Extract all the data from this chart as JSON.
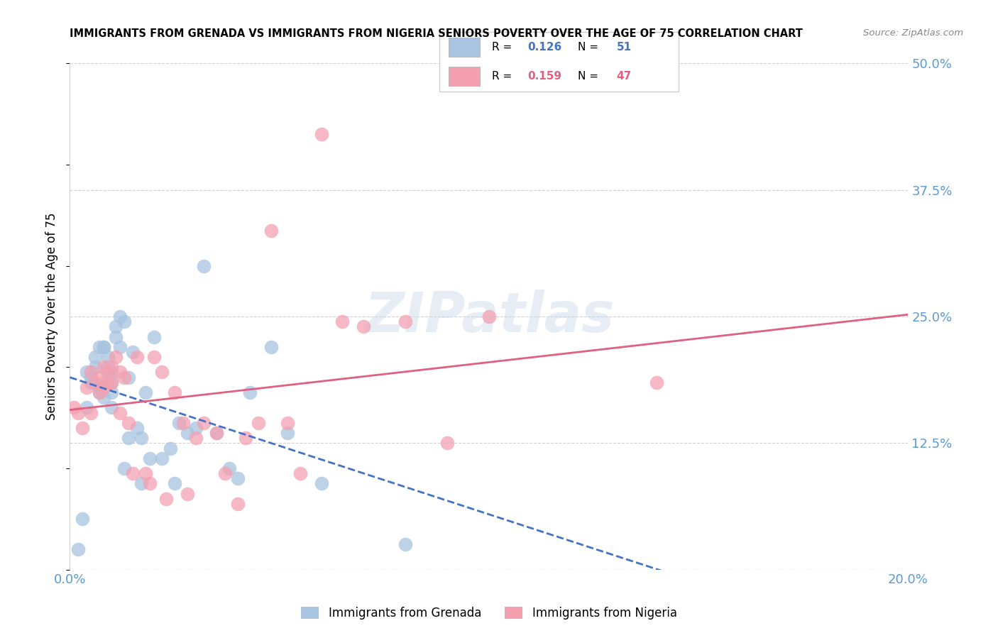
{
  "title": "IMMIGRANTS FROM GRENADA VS IMMIGRANTS FROM NIGERIA SENIORS POVERTY OVER THE AGE OF 75 CORRELATION CHART",
  "source": "Source: ZipAtlas.com",
  "ylabel": "Seniors Poverty Over the Age of 75",
  "xlim": [
    0.0,
    0.2
  ],
  "ylim": [
    0.0,
    0.5
  ],
  "xticks": [
    0.0,
    0.05,
    0.1,
    0.15,
    0.2
  ],
  "xticklabels": [
    "0.0%",
    "",
    "",
    "",
    "20.0%"
  ],
  "yticks": [
    0.0,
    0.125,
    0.25,
    0.375,
    0.5
  ],
  "yticklabels_right": [
    "",
    "12.5%",
    "25.0%",
    "37.5%",
    "50.0%"
  ],
  "axis_color": "#5b9bd5",
  "grid_color": "#d0d0d0",
  "grenada_color": "#a8c4e0",
  "nigeria_color": "#f4a0b0",
  "grenada_trend_color": "#4472c4",
  "nigeria_trend_color": "#e06080",
  "grenada_r": "0.126",
  "grenada_n": "51",
  "nigeria_r": "0.159",
  "nigeria_n": "47",
  "legend_label1": "Immigrants from Grenada",
  "legend_label2": "Immigrants from Nigeria",
  "grenada_x": [
    0.002,
    0.003,
    0.004,
    0.004,
    0.005,
    0.005,
    0.006,
    0.006,
    0.007,
    0.007,
    0.007,
    0.008,
    0.008,
    0.008,
    0.009,
    0.009,
    0.009,
    0.01,
    0.01,
    0.01,
    0.01,
    0.011,
    0.011,
    0.012,
    0.012,
    0.013,
    0.013,
    0.014,
    0.014,
    0.015,
    0.016,
    0.017,
    0.017,
    0.018,
    0.019,
    0.02,
    0.022,
    0.024,
    0.025,
    0.026,
    0.028,
    0.03,
    0.032,
    0.035,
    0.038,
    0.04,
    0.043,
    0.048,
    0.052,
    0.06,
    0.08
  ],
  "grenada_y": [
    0.02,
    0.05,
    0.16,
    0.195,
    0.19,
    0.185,
    0.21,
    0.2,
    0.18,
    0.175,
    0.22,
    0.17,
    0.22,
    0.22,
    0.2,
    0.21,
    0.19,
    0.175,
    0.195,
    0.185,
    0.16,
    0.23,
    0.24,
    0.22,
    0.25,
    0.245,
    0.1,
    0.13,
    0.19,
    0.215,
    0.14,
    0.085,
    0.13,
    0.175,
    0.11,
    0.23,
    0.11,
    0.12,
    0.085,
    0.145,
    0.135,
    0.14,
    0.3,
    0.135,
    0.1,
    0.09,
    0.175,
    0.22,
    0.135,
    0.085,
    0.025
  ],
  "nigeria_x": [
    0.001,
    0.002,
    0.003,
    0.004,
    0.005,
    0.005,
    0.006,
    0.007,
    0.007,
    0.008,
    0.008,
    0.009,
    0.009,
    0.01,
    0.01,
    0.011,
    0.012,
    0.012,
    0.013,
    0.014,
    0.015,
    0.016,
    0.018,
    0.019,
    0.02,
    0.022,
    0.023,
    0.025,
    0.027,
    0.028,
    0.03,
    0.032,
    0.035,
    0.037,
    0.04,
    0.042,
    0.045,
    0.048,
    0.052,
    0.055,
    0.06,
    0.065,
    0.07,
    0.08,
    0.09,
    0.1,
    0.14
  ],
  "nigeria_y": [
    0.16,
    0.155,
    0.14,
    0.18,
    0.155,
    0.195,
    0.185,
    0.175,
    0.19,
    0.2,
    0.18,
    0.185,
    0.195,
    0.2,
    0.185,
    0.21,
    0.195,
    0.155,
    0.19,
    0.145,
    0.095,
    0.21,
    0.095,
    0.085,
    0.21,
    0.195,
    0.07,
    0.175,
    0.145,
    0.075,
    0.13,
    0.145,
    0.135,
    0.095,
    0.065,
    0.13,
    0.145,
    0.335,
    0.145,
    0.095,
    0.43,
    0.245,
    0.24,
    0.245,
    0.125,
    0.25,
    0.185
  ]
}
